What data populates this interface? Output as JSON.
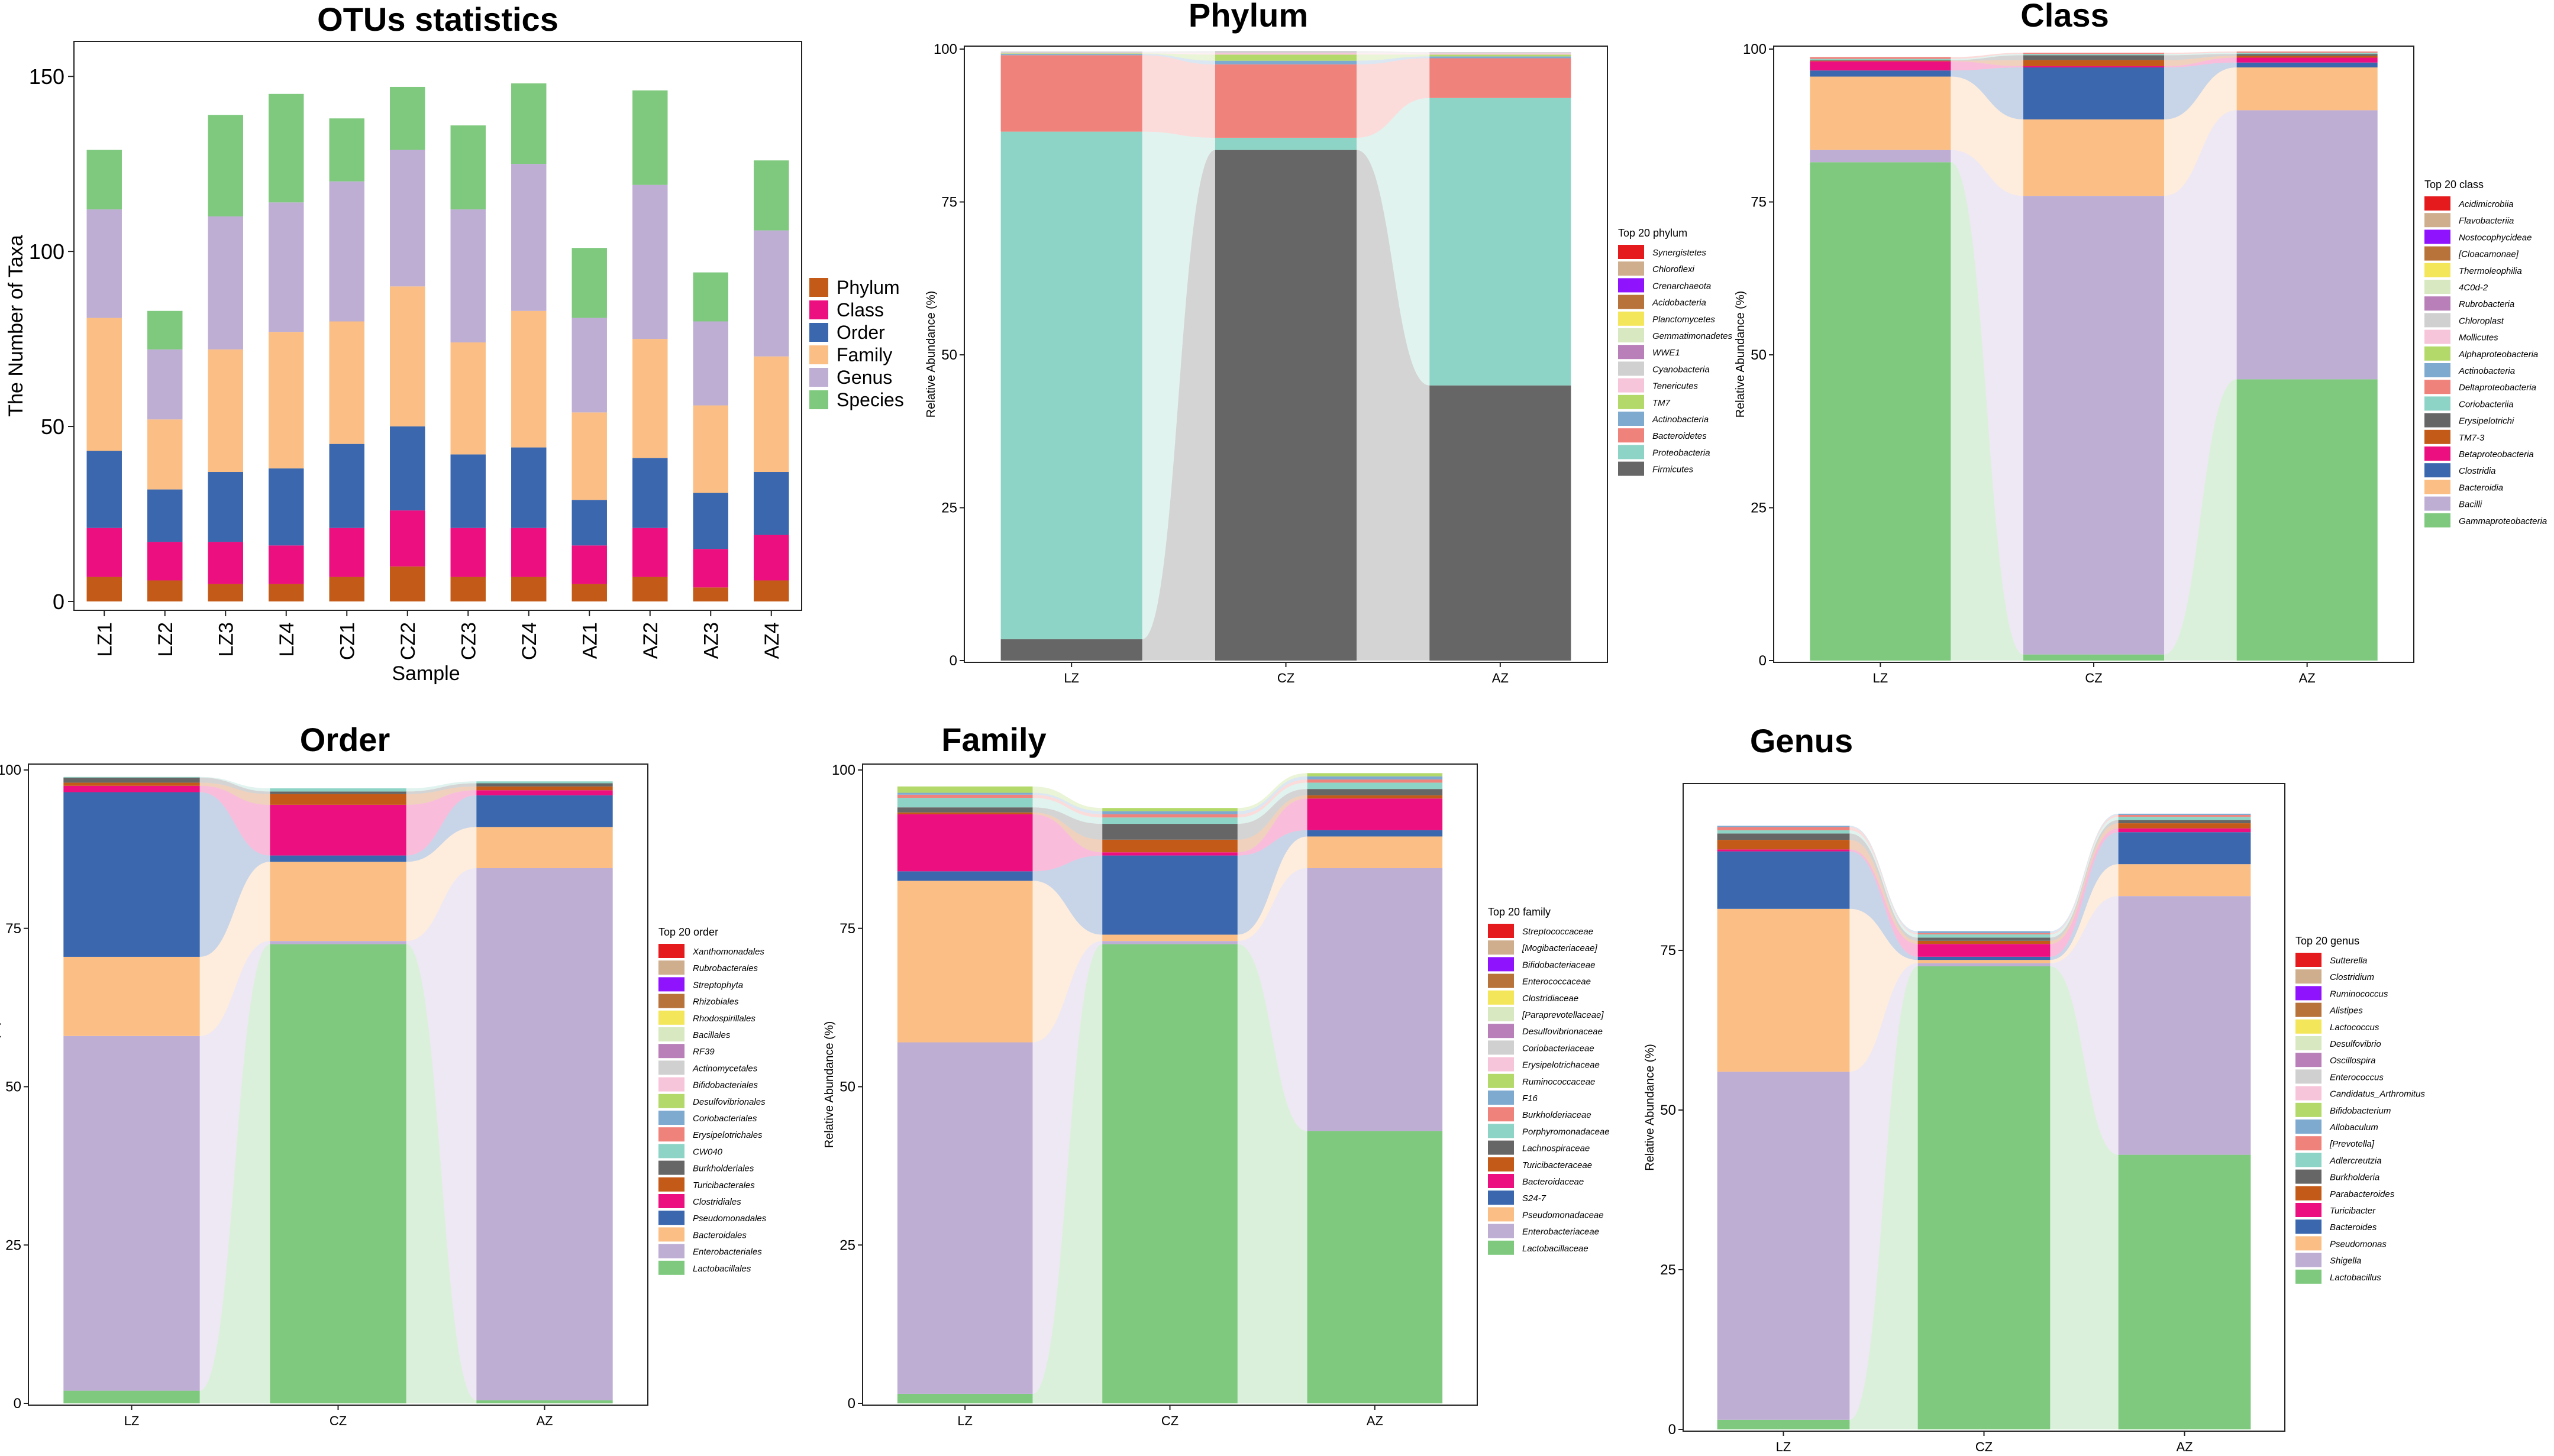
{
  "chart_data": [
    {
      "id": "otus",
      "type": "bar",
      "stacked": true,
      "title": "OTUs statistics",
      "xlabel": "Sample",
      "ylabel": "The Number of Taxa",
      "ylim": [
        0,
        160
      ],
      "yticks": [
        0,
        50,
        100,
        150
      ],
      "categories": [
        "LZ1",
        "LZ2",
        "LZ3",
        "LZ4",
        "CZ1",
        "CZ2",
        "CZ3",
        "CZ4",
        "AZ1",
        "AZ2",
        "AZ3",
        "AZ4"
      ],
      "series": [
        {
          "name": "Phylum",
          "color": "#C45A17",
          "values": [
            7,
            6,
            5,
            5,
            7,
            10,
            7,
            7,
            5,
            7,
            4,
            6
          ]
        },
        {
          "name": "Class",
          "color": "#EC0F7F",
          "values": [
            14,
            11,
            12,
            11,
            14,
            16,
            14,
            14,
            11,
            14,
            11,
            13
          ]
        },
        {
          "name": "Order",
          "color": "#3A67AE",
          "values": [
            22,
            15,
            20,
            22,
            24,
            24,
            21,
            23,
            13,
            20,
            16,
            18
          ]
        },
        {
          "name": "Family",
          "color": "#FBBF85",
          "values": [
            38,
            20,
            35,
            39,
            35,
            40,
            32,
            39,
            25,
            34,
            25,
            33
          ]
        },
        {
          "name": "Genus",
          "color": "#BEAED4",
          "values": [
            31,
            20,
            38,
            37,
            40,
            39,
            38,
            42,
            27,
            44,
            24,
            36
          ]
        },
        {
          "name": "Species",
          "color": "#7FC97F",
          "values": [
            17,
            11,
            29,
            31,
            18,
            18,
            24,
            23,
            20,
            27,
            14,
            20
          ]
        }
      ],
      "legend": "right"
    },
    {
      "id": "phylum",
      "type": "area",
      "alluvial": true,
      "title": "Phylum",
      "ylabel": "Relative Abundance (%)",
      "ylim": [
        0,
        100
      ],
      "yticks": [
        0,
        25,
        50,
        75,
        100
      ],
      "categories": [
        "LZ",
        "CZ",
        "AZ"
      ],
      "legend_title": "Top 20 phylum",
      "legend_labels": [
        "Synergistetes",
        "Chloroflexi",
        "Crenarchaeota",
        "Acidobacteria",
        "Planctomycetes",
        "Gemmatimonadetes",
        "WWE1",
        "Cyanobacteria",
        "Tenericutes",
        "TM7",
        "Actinobacteria",
        "Bacteroidetes",
        "Proteobacteria",
        "Firmicutes"
      ],
      "legend_colors": [
        "#E41A1C",
        "#CFAE8E",
        "#9013FE",
        "#B8733A",
        "#F3E65B",
        "#D8E8C0",
        "#B87FB8",
        "#D0D0D0",
        "#F7C5D9",
        "#B3D96A",
        "#7FAAD0",
        "#F0827C",
        "#8ED4C6",
        "#666666"
      ],
      "series": [
        {
          "name": "Firmicutes",
          "color": "#666666",
          "values": [
            3.5,
            83.5,
            45.0
          ]
        },
        {
          "name": "Proteobacteria",
          "color": "#8ED4C6",
          "values": [
            83.0,
            2.0,
            47.0
          ]
        },
        {
          "name": "Bacteroidetes",
          "color": "#F0827C",
          "values": [
            12.5,
            12.0,
            6.5
          ]
        },
        {
          "name": "Actinobacteria",
          "color": "#7FAAD0",
          "values": [
            0.2,
            0.6,
            0.3
          ]
        },
        {
          "name": "TM7",
          "color": "#B3D96A",
          "values": [
            0.1,
            1.0,
            0.3
          ]
        },
        {
          "name": "Tenericutes",
          "color": "#F7C5D9",
          "values": [
            0.1,
            0.3,
            0.2
          ]
        },
        {
          "name": "Cyanobacteria",
          "color": "#D0D0D0",
          "values": [
            0.2,
            0.3,
            0.2
          ]
        }
      ]
    },
    {
      "id": "class",
      "type": "area",
      "alluvial": true,
      "title": "Class",
      "ylabel": "Relative Abundance (%)",
      "ylim": [
        0,
        100
      ],
      "yticks": [
        0,
        25,
        50,
        75,
        100
      ],
      "categories": [
        "LZ",
        "CZ",
        "AZ"
      ],
      "legend_title": "Top 20 class",
      "legend_labels": [
        "Acidimicrobiia",
        "Flavobacteriia",
        "Nostocophycideae",
        "[Cloacamonae]",
        "Thermoleophilia",
        "4C0d-2",
        "Rubrobacteria",
        "Chloroplast",
        "Mollicutes",
        "Alphaproteobacteria",
        "Actinobacteria",
        "Deltaproteobacteria",
        "Coriobacteriia",
        "Erysipelotrichi",
        "TM7-3",
        "Betaproteobacteria",
        "Clostridia",
        "Bacteroidia",
        "Bacilli",
        "Gammaproteobacteria"
      ],
      "legend_colors": [
        "#E41A1C",
        "#CFAE8E",
        "#9013FE",
        "#B8733A",
        "#F3E65B",
        "#D8E8C0",
        "#B87FB8",
        "#D0D0D0",
        "#F7C5D9",
        "#B3D96A",
        "#7FAAD0",
        "#F0827C",
        "#8ED4C6",
        "#666666",
        "#C45A17",
        "#EC0F7F",
        "#3A67AE",
        "#FBBF85",
        "#BEAED4",
        "#7FC97F"
      ],
      "series": [
        {
          "name": "Gammaproteobacteria",
          "color": "#7FC97F",
          "values": [
            81.5,
            1.0,
            46.0
          ]
        },
        {
          "name": "Bacilli",
          "color": "#BEAED4",
          "values": [
            2.0,
            75.0,
            44.0
          ]
        },
        {
          "name": "Bacteroidia",
          "color": "#FBBF85",
          "values": [
            12.0,
            12.5,
            7.0
          ]
        },
        {
          "name": "Clostridia",
          "color": "#3A67AE",
          "values": [
            1.0,
            8.5,
            0.8
          ]
        },
        {
          "name": "Betaproteobacteria",
          "color": "#EC0F7F",
          "values": [
            1.5,
            0.2,
            0.8
          ]
        },
        {
          "name": "TM7-3",
          "color": "#C45A17",
          "values": [
            0.1,
            1.0,
            0.3
          ]
        },
        {
          "name": "Erysipelotrichi",
          "color": "#666666",
          "values": [
            0.1,
            0.8,
            0.3
          ]
        },
        {
          "name": "Coriobacteriia",
          "color": "#8ED4C6",
          "values": [
            0.2,
            0.2,
            0.2
          ]
        },
        {
          "name": "Deltaproteobacteria",
          "color": "#F0827C",
          "values": [
            0.3,
            0.2,
            0.2
          ]
        }
      ]
    },
    {
      "id": "order",
      "type": "area",
      "alluvial": true,
      "title": "Order",
      "ylabel": "Relative Abundance (%)",
      "ylim": [
        0,
        100
      ],
      "yticks": [
        0,
        25,
        50,
        75,
        100
      ],
      "categories": [
        "LZ",
        "CZ",
        "AZ"
      ],
      "legend_title": "Top 20 order",
      "legend_labels": [
        "Xanthomonadales",
        "Rubrobacterales",
        "Streptophyta",
        "Rhizobiales",
        "Rhodospirillales",
        "Bacillales",
        "RF39",
        "Actinomycetales",
        "Bifidobacteriales",
        "Desulfovibrionales",
        "Coriobacteriales",
        "Erysipelotrichales",
        "CW040",
        "Burkholderiales",
        "Turicibacterales",
        "Clostridiales",
        "Pseudomonadales",
        "Bacteroidales",
        "Enterobacteriales",
        "Lactobacillales"
      ],
      "legend_colors": [
        "#E41A1C",
        "#CFAE8E",
        "#9013FE",
        "#B8733A",
        "#F3E65B",
        "#D8E8C0",
        "#B87FB8",
        "#D0D0D0",
        "#F7C5D9",
        "#B3D96A",
        "#7FAAD0",
        "#F0827C",
        "#8ED4C6",
        "#666666",
        "#C45A17",
        "#EC0F7F",
        "#3A67AE",
        "#FBBF85",
        "#BEAED4",
        "#7FC97F"
      ],
      "series": [
        {
          "name": "Lactobacillales",
          "color": "#7FC97F",
          "values": [
            2.0,
            72.5,
            0.5
          ]
        },
        {
          "name": "Enterobacteriales",
          "color": "#BEAED4",
          "values": [
            56.0,
            0.5,
            84.0
          ]
        },
        {
          "name": "Bacteroidales",
          "color": "#FBBF85",
          "values": [
            12.5,
            12.5,
            6.5
          ]
        },
        {
          "name": "Pseudomonadales",
          "color": "#3A67AE",
          "values": [
            26.0,
            1.0,
            5.0
          ]
        },
        {
          "name": "Clostridiales",
          "color": "#EC0F7F",
          "values": [
            1.0,
            8.0,
            0.8
          ]
        },
        {
          "name": "Turicibacterales",
          "color": "#C45A17",
          "values": [
            0.5,
            1.7,
            0.6
          ]
        },
        {
          "name": "Burkholderiales",
          "color": "#666666",
          "values": [
            0.8,
            0.4,
            0.5
          ]
        },
        {
          "name": "CW040",
          "color": "#8ED4C6",
          "values": [
            0.1,
            0.5,
            0.3
          ]
        }
      ]
    },
    {
      "id": "family",
      "type": "area",
      "alluvial": true,
      "title": "Family",
      "ylabel": "Relative Abundance (%)",
      "ylim": [
        0,
        100
      ],
      "yticks": [
        0,
        25,
        50,
        75,
        100
      ],
      "categories": [
        "LZ",
        "CZ",
        "AZ"
      ],
      "legend_title": "Top 20 family",
      "legend_labels": [
        "Streptococcaceae",
        "[Mogibacteriaceae]",
        "Bifidobacteriaceae",
        "Enterococcaceae",
        "Clostridiaceae",
        "[Paraprevotellaceae]",
        "Desulfovibrionaceae",
        "Coriobacteriaceae",
        "Erysipelotrichaceae",
        "Ruminococcaceae",
        "F16",
        "Burkholderiaceae",
        "Porphyromonadaceae",
        "Lachnospiraceae",
        "Turicibacteraceae",
        "Bacteroidaceae",
        "S24-7",
        "Pseudomonadaceae",
        "Enterobacteriaceae",
        "Lactobacillaceae"
      ],
      "legend_colors": [
        "#E41A1C",
        "#CFAE8E",
        "#9013FE",
        "#B8733A",
        "#F3E65B",
        "#D8E8C0",
        "#B87FB8",
        "#D0D0D0",
        "#F7C5D9",
        "#B3D96A",
        "#7FAAD0",
        "#F0827C",
        "#8ED4C6",
        "#666666",
        "#C45A17",
        "#EC0F7F",
        "#3A67AE",
        "#FBBF85",
        "#BEAED4",
        "#7FC97F"
      ],
      "series": [
        {
          "name": "Lactobacillaceae",
          "color": "#7FC97F",
          "values": [
            1.5,
            72.5,
            43.0
          ]
        },
        {
          "name": "Enterobacteriaceae",
          "color": "#BEAED4",
          "values": [
            55.5,
            0.5,
            41.5
          ]
        },
        {
          "name": "Pseudomonadaceae",
          "color": "#FBBF85",
          "values": [
            25.5,
            1.0,
            5.0
          ]
        },
        {
          "name": "S24-7",
          "color": "#3A67AE",
          "values": [
            1.5,
            12.5,
            1.0
          ]
        },
        {
          "name": "Bacteroidaceae",
          "color": "#EC0F7F",
          "values": [
            9.0,
            0.5,
            5.0
          ]
        },
        {
          "name": "Turicibacteraceae",
          "color": "#C45A17",
          "values": [
            0.3,
            2.0,
            0.5
          ]
        },
        {
          "name": "Lachnospiraceae",
          "color": "#666666",
          "values": [
            0.8,
            2.5,
            1.0
          ]
        },
        {
          "name": "Porphyromonadaceae",
          "color": "#8ED4C6",
          "values": [
            1.5,
            1.0,
            1.0
          ]
        },
        {
          "name": "Burkholderiaceae",
          "color": "#F0827C",
          "values": [
            0.5,
            0.5,
            0.5
          ]
        },
        {
          "name": "F16",
          "color": "#7FAAD0",
          "values": [
            0.3,
            0.5,
            0.5
          ]
        },
        {
          "name": "Ruminococcaceae",
          "color": "#B3D96A",
          "values": [
            1.0,
            0.5,
            0.5
          ]
        }
      ]
    },
    {
      "id": "genus",
      "type": "area",
      "alluvial": true,
      "title": "Genus",
      "ylabel": "Relative Abundance (%)",
      "ylim": [
        0,
        100
      ],
      "yticks": [
        0,
        25,
        50,
        75
      ],
      "categories": [
        "LZ",
        "CZ",
        "AZ"
      ],
      "legend_title": "Top 20 genus",
      "legend_labels": [
        "Sutterella",
        "Clostridium",
        "Ruminococcus",
        "Alistipes",
        "Lactococcus",
        "Desulfovibrio",
        "Oscillospira",
        "Enterococcus",
        "Candidatus_Arthromitus",
        "Bifidobacterium",
        "Allobaculum",
        "[Prevotella]",
        "Adlercreutzia",
        "Burkholderia",
        "Parabacteroides",
        "Turicibacter",
        "Bacteroides",
        "Pseudomonas",
        "Shigella",
        "Lactobacillus"
      ],
      "legend_colors": [
        "#E41A1C",
        "#CFAE8E",
        "#9013FE",
        "#B8733A",
        "#F3E65B",
        "#D8E8C0",
        "#B87FB8",
        "#D0D0D0",
        "#F7C5D9",
        "#B3D96A",
        "#7FAAD0",
        "#F0827C",
        "#8ED4C6",
        "#666666",
        "#C45A17",
        "#EC0F7F",
        "#3A67AE",
        "#FBBF85",
        "#BEAED4",
        "#7FC97F"
      ],
      "series": [
        {
          "name": "Lactobacillus",
          "color": "#7FC97F",
          "values": [
            1.5,
            72.5,
            43.0
          ]
        },
        {
          "name": "Shigella",
          "color": "#BEAED4",
          "values": [
            54.5,
            0.5,
            40.5
          ]
        },
        {
          "name": "Pseudomonas",
          "color": "#FBBF85",
          "values": [
            25.5,
            0.5,
            5.0
          ]
        },
        {
          "name": "Bacteroides",
          "color": "#3A67AE",
          "values": [
            9.0,
            0.5,
            5.0
          ]
        },
        {
          "name": "Turicibacter",
          "color": "#EC0F7F",
          "values": [
            0.3,
            2.0,
            0.6
          ]
        },
        {
          "name": "Parabacteroides",
          "color": "#C45A17",
          "values": [
            1.5,
            0.5,
            0.8
          ]
        },
        {
          "name": "Burkholderia",
          "color": "#666666",
          "values": [
            1.0,
            0.5,
            0.5
          ]
        },
        {
          "name": "Adlercreutzia",
          "color": "#8ED4C6",
          "values": [
            0.5,
            0.5,
            0.5
          ]
        },
        {
          "name": "[Prevotella]",
          "color": "#F0827C",
          "values": [
            0.5,
            0.2,
            0.3
          ]
        },
        {
          "name": "Allobaculum",
          "color": "#7FAAD0",
          "values": [
            0.2,
            0.3,
            0.2
          ]
        }
      ]
    }
  ]
}
